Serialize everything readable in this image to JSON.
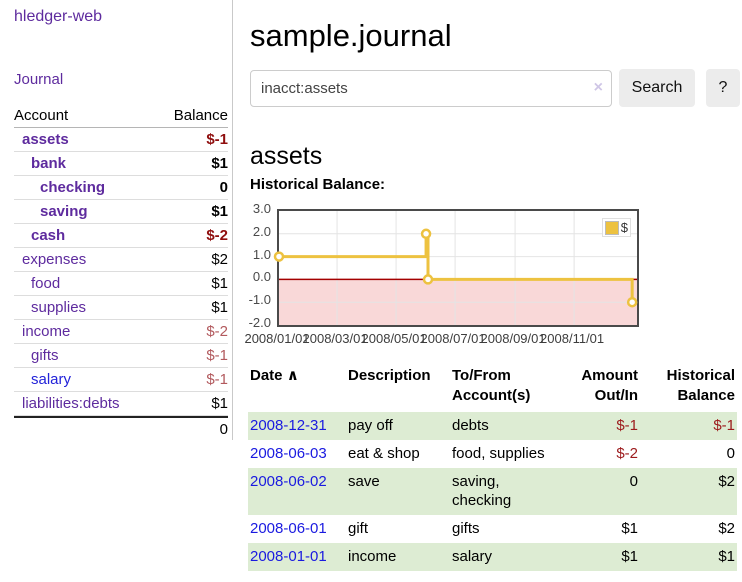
{
  "app": {
    "title": "hledger-web",
    "nav_journal_label": "Journal"
  },
  "sidebar": {
    "col_account": "Account",
    "col_balance": "Balance",
    "rows": [
      {
        "name": "assets",
        "balance": "$-1",
        "depth": 1,
        "bold": true,
        "negative": true
      },
      {
        "name": "bank",
        "balance": "$1",
        "depth": 2,
        "bold": true,
        "negative": false
      },
      {
        "name": "checking",
        "balance": "0",
        "depth": 3,
        "bold": true,
        "negative": false
      },
      {
        "name": "saving",
        "balance": "$1",
        "depth": 3,
        "bold": true,
        "negative": false
      },
      {
        "name": "cash",
        "balance": "$-2",
        "depth": 2,
        "bold": true,
        "negative": true
      },
      {
        "name": "expenses",
        "balance": "$2",
        "depth": 1,
        "bold": false,
        "negative": false
      },
      {
        "name": "food",
        "balance": "$1",
        "depth": 2,
        "bold": false,
        "negative": false
      },
      {
        "name": "supplies",
        "balance": "$1",
        "depth": 2,
        "bold": false,
        "negative": false
      },
      {
        "name": "income",
        "balance": "$-2",
        "depth": 1,
        "bold": false,
        "negative": true
      },
      {
        "name": "gifts",
        "balance": "$-1",
        "depth": 2,
        "bold": false,
        "negative": true
      },
      {
        "name": "salary",
        "balance": "$-1",
        "depth": 2,
        "bold": false,
        "negative": true,
        "blue": true
      },
      {
        "name": "liabilities:debts",
        "balance": "$1",
        "depth": 1,
        "bold": false,
        "negative": false
      }
    ],
    "total": "0"
  },
  "header": {
    "title": "sample.journal"
  },
  "search": {
    "value": "inacct:assets",
    "clear_icon": "×",
    "button_label": "Search",
    "help_label": "?"
  },
  "account_page": {
    "heading": "assets",
    "chart_label": "Historical Balance:"
  },
  "chart_data": {
    "type": "line",
    "title": "Historical Balance:",
    "series": [
      {
        "name": "$",
        "color": "#edc240",
        "step": true,
        "points": [
          [
            "2008-01-01",
            1.0
          ],
          [
            "2008-06-01",
            2.0
          ],
          [
            "2008-06-03",
            0.0
          ],
          [
            "2008-12-31",
            -1.0
          ]
        ]
      }
    ],
    "xlim": [
      "2008-01-01",
      "2009-01-05"
    ],
    "ylim": [
      -2.0,
      3.0
    ],
    "yticks": [
      3.0,
      2.0,
      1.0,
      0.0,
      -1.0,
      -2.0
    ],
    "xticks": [
      "2008/01/01",
      "2008/03/01",
      "2008/05/01",
      "2008/07/01",
      "2008/09/01",
      "2008/11/01"
    ],
    "legend_position": "top-right",
    "grid": true,
    "grid_color": "#e4e4e4",
    "negative_region_color": "#f9d8d8",
    "zero_line_color": "#a40000"
  },
  "register": {
    "headers": {
      "date": "Date",
      "sort_asc_icon": "∧",
      "description": "Description",
      "account": "To/From Account(s)",
      "amount": "Amount Out/In",
      "balance": "Historical Balance"
    },
    "rows": [
      {
        "date": "2008-12-31",
        "description": "pay off",
        "accounts": "debts",
        "amount": "$-1",
        "amount_negative": true,
        "balance": "$-1",
        "balance_negative": true,
        "green": true
      },
      {
        "date": "2008-06-03",
        "description": "eat & shop",
        "accounts": "food, supplies",
        "amount": "$-2",
        "amount_negative": true,
        "balance": "0",
        "balance_negative": false,
        "green": false
      },
      {
        "date": "2008-06-02",
        "description": "save",
        "accounts": "saving, checking",
        "amount": "0",
        "amount_negative": false,
        "balance": "$2",
        "balance_negative": false,
        "green": true
      },
      {
        "date": "2008-06-01",
        "description": "gift",
        "accounts": "gifts",
        "amount": "$1",
        "amount_negative": false,
        "balance": "$2",
        "balance_negative": false,
        "green": false
      },
      {
        "date": "2008-01-01",
        "description": "income",
        "accounts": "salary",
        "amount": "$1",
        "amount_negative": false,
        "balance": "$1",
        "balance_negative": false,
        "green": true
      }
    ]
  }
}
